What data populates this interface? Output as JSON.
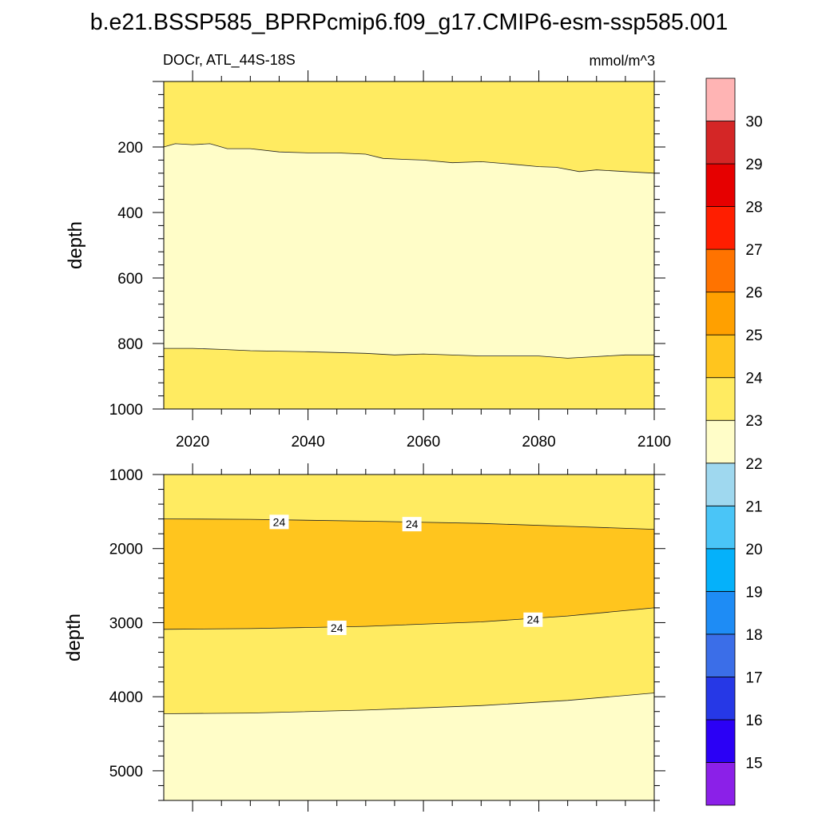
{
  "chart_data": {
    "type": "contour",
    "title": "b.e21.BSSP585_BPRPcmip6.f09_g17.CMIP6-esm-ssp585.001",
    "variable_label": "DOCr, ATL_44S-18S",
    "units": "mmol/m^3",
    "x_axis": {
      "ticks": [
        2020,
        2040,
        2060,
        2080,
        2100
      ],
      "labels": [
        "2020",
        "2040",
        "2060",
        "2080",
        "2100"
      ],
      "range": [
        2015,
        2100
      ]
    },
    "panels": [
      {
        "name": "upper",
        "ylabel": "depth",
        "yrange": [
          0,
          1000
        ],
        "yticks": [
          200,
          400,
          600,
          800,
          1000
        ],
        "ytick_labels": [
          "200",
          "400",
          "600",
          "800",
          "1000"
        ],
        "contour_lines": [
          {
            "level": 23,
            "x": [
              2015,
              2017,
              2020,
              2023,
              2026,
              2030,
              2035,
              2040,
              2045,
              2050,
              2053,
              2057,
              2060,
              2065,
              2070,
              2075,
              2080,
              2083,
              2087,
              2090,
              2095,
              2100
            ],
            "depth": [
              200,
              190,
              193,
              190,
              205,
              205,
              215,
              218,
              218,
              222,
              235,
              238,
              240,
              248,
              245,
              252,
              260,
              262,
              275,
              270,
              275,
              280
            ]
          },
          {
            "level": 23,
            "x": [
              2015,
              2020,
              2025,
              2030,
              2040,
              2050,
              2055,
              2060,
              2070,
              2080,
              2085,
              2090,
              2095,
              2100
            ],
            "depth": [
              815,
              815,
              818,
              822,
              825,
              830,
              835,
              832,
              838,
              838,
              845,
              840,
              835,
              835
            ]
          }
        ],
        "regions": [
          {
            "range": "23-24",
            "depth_from": "0",
            "depth_to": "line 1"
          },
          {
            "range": "22-23",
            "depth_from": "line 1",
            "depth_to": "line 2"
          },
          {
            "range": "23-24",
            "depth_from": "line 2",
            "depth_to": "1000"
          }
        ]
      },
      {
        "name": "lower",
        "ylabel": "depth",
        "yrange": [
          1000,
          5400
        ],
        "yticks": [
          1000,
          2000,
          3000,
          4000,
          5000
        ],
        "ytick_labels": [
          "1000",
          "2000",
          "3000",
          "4000",
          "5000"
        ],
        "contour_lines": [
          {
            "level": 24,
            "x": [
              2015,
              2030,
              2050,
              2070,
              2085,
              2100
            ],
            "depth": [
              1600,
              1605,
              1630,
              1660,
              1700,
              1740
            ]
          },
          {
            "level": 24,
            "x": [
              2015,
              2030,
              2050,
              2070,
              2085,
              2100
            ],
            "depth": [
              3090,
              3080,
              3050,
              2990,
              2910,
              2800
            ]
          },
          {
            "level": 23,
            "x": [
              2015,
              2030,
              2050,
              2070,
              2085,
              2100
            ],
            "depth": [
              4230,
              4220,
              4180,
              4120,
              4050,
              3950
            ]
          }
        ],
        "contour_labels": [
          {
            "text": "24",
            "x": 2035,
            "depth": 1640
          },
          {
            "text": "24",
            "x": 2058,
            "depth": 1670
          },
          {
            "text": "24",
            "x": 2045,
            "depth": 3070
          },
          {
            "text": "24",
            "x": 2079,
            "depth": 2960
          }
        ]
      }
    ],
    "colorbar": {
      "levels": [
        "15",
        "16",
        "17",
        "18",
        "19",
        "20",
        "21",
        "22",
        "23",
        "24",
        "25",
        "26",
        "27",
        "28",
        "29",
        "30"
      ],
      "colors": [
        "#8b20e8",
        "#2b00f5",
        "#2638e6",
        "#3b6ee8",
        "#1e8cf5",
        "#05b1fa",
        "#4ac5f7",
        "#9fd8ef",
        "#fffdc8",
        "#ffeb61",
        "#ffc51e",
        "#ffa000",
        "#ff7300",
        "#ff1e00",
        "#e60000",
        "#d42626",
        "#ffb4b4"
      ]
    }
  }
}
